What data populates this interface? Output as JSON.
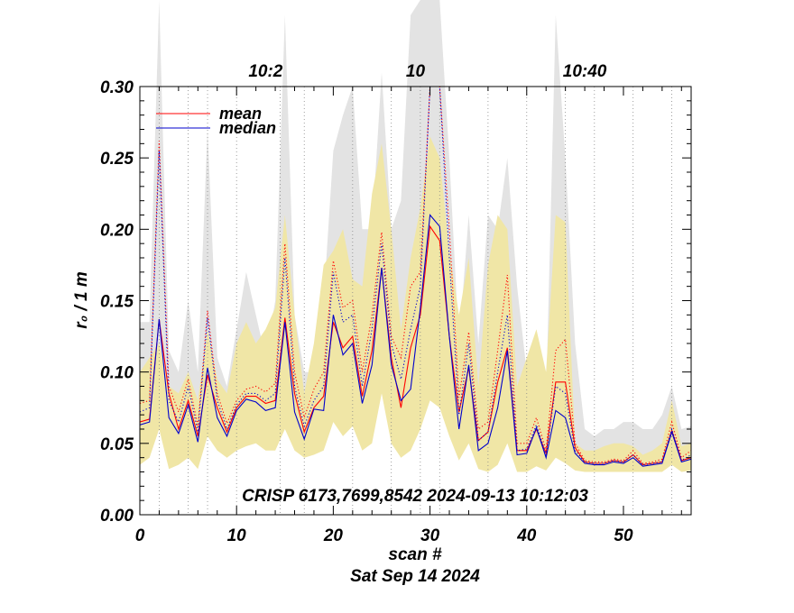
{
  "chart_data": {
    "type": "line",
    "title": "CRISP 6173,7699,8542 2024-09-13 10:12:03",
    "xlabel": "scan #",
    "subtitle": "Sat Sep 14 2024",
    "ylabel": "r₀ / 1 m",
    "xlim": [
      0,
      57
    ],
    "ylim": [
      0,
      0.3
    ],
    "x_ticks": [
      0,
      10,
      20,
      30,
      40,
      50
    ],
    "x_tick_labels": [
      "0",
      "10",
      "20",
      "30",
      "40",
      "50"
    ],
    "y_ticks": [
      0.0,
      0.05,
      0.1,
      0.15,
      0.2,
      0.25,
      0.3
    ],
    "y_tick_labels": [
      "0.00",
      "0.05",
      "0.10",
      "0.15",
      "0.20",
      "0.25",
      "0.30"
    ],
    "top_axis": {
      "labels": [
        "10:2",
        "10",
        "10:40"
      ],
      "positions": [
        13,
        28.5,
        46
      ]
    },
    "time_gridlines": [
      2,
      5,
      7,
      10,
      14.5,
      17,
      22,
      26,
      29,
      31,
      36,
      40,
      44,
      47,
      51,
      55
    ],
    "legend": {
      "position": "top-left",
      "entries": [
        {
          "label": "mean",
          "color": "#ff0000"
        },
        {
          "label": "median",
          "color": "#0000cc"
        }
      ]
    },
    "x": [
      0,
      1,
      2,
      3,
      4,
      5,
      6,
      7,
      8,
      9,
      10,
      11,
      12,
      13,
      14,
      15,
      16,
      17,
      18,
      19,
      20,
      21,
      22,
      23,
      24,
      25,
      26,
      27,
      28,
      29,
      30,
      31,
      32,
      33,
      34,
      35,
      36,
      37,
      38,
      39,
      40,
      41,
      42,
      43,
      44,
      45,
      46,
      47,
      48,
      49,
      50,
      51,
      52,
      53,
      54,
      55,
      56,
      57
    ],
    "series": [
      {
        "name": "mean",
        "style": "solid",
        "color": "#ff0000",
        "values": [
          0.065,
          0.067,
          0.137,
          0.085,
          0.06,
          0.08,
          0.055,
          0.098,
          0.075,
          0.058,
          0.075,
          0.083,
          0.083,
          0.078,
          0.08,
          0.138,
          0.085,
          0.058,
          0.075,
          0.083,
          0.135,
          0.117,
          0.125,
          0.083,
          0.115,
          0.173,
          0.11,
          0.075,
          0.117,
          0.14,
          0.202,
          0.192,
          0.125,
          0.072,
          0.103,
          0.052,
          0.058,
          0.093,
          0.117,
          0.045,
          0.045,
          0.06,
          0.043,
          0.093,
          0.093,
          0.047,
          0.037,
          0.036,
          0.036,
          0.038,
          0.037,
          0.042,
          0.035,
          0.036,
          0.037,
          0.059,
          0.038,
          0.04
        ]
      },
      {
        "name": "median",
        "style": "solid",
        "color": "#0000cc",
        "values": [
          0.063,
          0.065,
          0.137,
          0.068,
          0.057,
          0.077,
          0.051,
          0.103,
          0.068,
          0.055,
          0.073,
          0.081,
          0.079,
          0.073,
          0.075,
          0.135,
          0.072,
          0.053,
          0.074,
          0.073,
          0.14,
          0.112,
          0.12,
          0.078,
          0.105,
          0.173,
          0.105,
          0.08,
          0.088,
          0.145,
          0.21,
          0.202,
          0.125,
          0.06,
          0.105,
          0.045,
          0.05,
          0.075,
          0.115,
          0.042,
          0.043,
          0.061,
          0.04,
          0.073,
          0.068,
          0.043,
          0.036,
          0.035,
          0.035,
          0.037,
          0.036,
          0.04,
          0.034,
          0.035,
          0.036,
          0.058,
          0.037,
          0.039
        ]
      },
      {
        "name": "mean (dotted)",
        "style": "dotted",
        "color": "#ff0000",
        "values": [
          0.078,
          0.08,
          0.262,
          0.09,
          0.072,
          0.095,
          0.062,
          0.143,
          0.085,
          0.064,
          0.08,
          0.088,
          0.09,
          0.086,
          0.092,
          0.19,
          0.1,
          0.068,
          0.088,
          0.1,
          0.178,
          0.145,
          0.15,
          0.1,
          0.14,
          0.198,
          0.125,
          0.11,
          0.16,
          0.17,
          0.3,
          0.3,
          0.2,
          0.082,
          0.128,
          0.06,
          0.065,
          0.115,
          0.168,
          0.05,
          0.05,
          0.068,
          0.045,
          0.115,
          0.123,
          0.05,
          0.038,
          0.037,
          0.037,
          0.039,
          0.038,
          0.045,
          0.036,
          0.037,
          0.039,
          0.065,
          0.04,
          0.045
        ]
      },
      {
        "name": "median (dotted)",
        "style": "dotted",
        "color": "#0000cc",
        "values": [
          0.072,
          0.075,
          0.255,
          0.08,
          0.065,
          0.09,
          0.058,
          0.138,
          0.08,
          0.06,
          0.077,
          0.085,
          0.085,
          0.08,
          0.085,
          0.18,
          0.09,
          0.062,
          0.08,
          0.09,
          0.17,
          0.135,
          0.14,
          0.09,
          0.13,
          0.19,
          0.12,
          0.095,
          0.13,
          0.16,
          0.3,
          0.3,
          0.18,
          0.07,
          0.12,
          0.052,
          0.058,
          0.1,
          0.14,
          0.045,
          0.046,
          0.063,
          0.042,
          0.09,
          0.085,
          0.045,
          0.037,
          0.036,
          0.036,
          0.038,
          0.037,
          0.042,
          0.035,
          0.036,
          0.037,
          0.06,
          0.038,
          0.042
        ]
      }
    ],
    "bands": [
      {
        "name": "grey range",
        "color": "#e3e3e3",
        "upper": [
          0.135,
          0.135,
          0.42,
          0.115,
          0.1,
          0.15,
          0.1,
          0.27,
          0.11,
          0.09,
          0.13,
          0.17,
          0.14,
          0.11,
          0.15,
          0.35,
          0.14,
          0.1,
          0.1,
          0.15,
          0.255,
          0.28,
          0.3,
          0.2,
          0.2,
          0.31,
          0.2,
          0.22,
          0.35,
          0.6,
          0.6,
          0.6,
          0.25,
          0.12,
          0.21,
          0.12,
          0.21,
          0.2,
          0.25,
          0.16,
          0.1,
          0.12,
          0.08,
          0.35,
          0.25,
          0.12,
          0.06,
          0.055,
          0.06,
          0.06,
          0.065,
          0.065,
          0.06,
          0.06,
          0.07,
          0.09,
          0.06,
          0.062
        ],
        "lower": [
          0.045,
          0.05,
          0.08,
          0.04,
          0.04,
          0.05,
          0.04,
          0.06,
          0.05,
          0.045,
          0.05,
          0.055,
          0.055,
          0.05,
          0.05,
          0.08,
          0.05,
          0.04,
          0.045,
          0.05,
          0.08,
          0.07,
          0.075,
          0.05,
          0.06,
          0.1,
          0.06,
          0.04,
          0.05,
          0.07,
          0.1,
          0.09,
          0.06,
          0.04,
          0.05,
          0.035,
          0.035,
          0.04,
          0.06,
          0.033,
          0.033,
          0.038,
          0.032,
          0.045,
          0.04,
          0.033,
          0.031,
          0.031,
          0.031,
          0.031,
          0.031,
          0.032,
          0.03,
          0.03,
          0.031,
          0.04,
          0.031,
          0.032
        ]
      },
      {
        "name": "yellow range",
        "color": "#f0e6a6",
        "upper": [
          0.1,
          0.11,
          0.12,
          0.09,
          0.085,
          0.1,
          0.08,
          0.13,
          0.095,
          0.085,
          0.12,
          0.135,
          0.12,
          0.13,
          0.145,
          0.21,
          0.14,
          0.085,
          0.12,
          0.175,
          0.185,
          0.2,
          0.165,
          0.16,
          0.225,
          0.26,
          0.2,
          0.13,
          0.18,
          0.215,
          0.265,
          0.25,
          0.185,
          0.14,
          0.18,
          0.09,
          0.175,
          0.21,
          0.2,
          0.09,
          0.11,
          0.13,
          0.1,
          0.21,
          0.205,
          0.05,
          0.045,
          0.045,
          0.048,
          0.05,
          0.05,
          0.048,
          0.042,
          0.045,
          0.05,
          0.08,
          0.048,
          0.05
        ],
        "lower": [
          0.035,
          0.04,
          0.06,
          0.032,
          0.035,
          0.04,
          0.032,
          0.055,
          0.045,
          0.04,
          0.045,
          0.048,
          0.05,
          0.045,
          0.045,
          0.06,
          0.045,
          0.04,
          0.042,
          0.045,
          0.065,
          0.055,
          0.062,
          0.045,
          0.05,
          0.085,
          0.05,
          0.04,
          0.045,
          0.06,
          0.08,
          0.075,
          0.055,
          0.038,
          0.05,
          0.032,
          0.03,
          0.035,
          0.05,
          0.03,
          0.03,
          0.034,
          0.031,
          0.04,
          0.036,
          0.031,
          0.03,
          0.03,
          0.03,
          0.03,
          0.03,
          0.03,
          0.03,
          0.03,
          0.03,
          0.035,
          0.03,
          0.031
        ]
      }
    ]
  }
}
